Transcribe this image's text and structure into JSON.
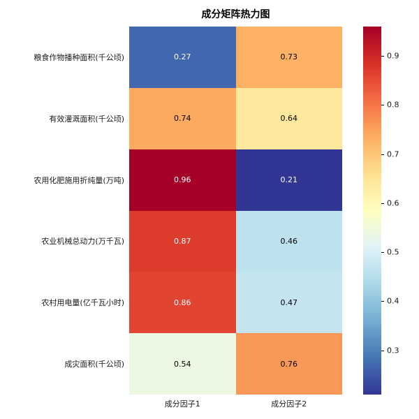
{
  "title": "成分矩阵热力图",
  "chart_data": {
    "type": "heatmap",
    "rows": [
      "粮食作物播种面积(千公顷)",
      "有效灌溉面积(千公顷)",
      "农用化肥施用折纯量(万吨)",
      "农业机械总动力(万千瓦)",
      "农村用电量(亿千瓦小时)",
      "成灾面积(千公顷)"
    ],
    "columns": [
      "成分因子1",
      "成分因子2"
    ],
    "values": [
      [
        0.27,
        0.73
      ],
      [
        0.74,
        0.64
      ],
      [
        0.96,
        0.21
      ],
      [
        0.87,
        0.46
      ],
      [
        0.86,
        0.47
      ],
      [
        0.54,
        0.76
      ]
    ],
    "vmin": 0.21,
    "vmax": 0.96,
    "colorbar_ticks": [
      0.3,
      0.4,
      0.5,
      0.6,
      0.7,
      0.8,
      0.9
    ],
    "colormap_name": "RdYlBu_r",
    "colormap_stops": [
      "#313695",
      "#4575b4",
      "#74add1",
      "#abd9e9",
      "#e0f3f8",
      "#ffffbf",
      "#fee090",
      "#fdae61",
      "#f46d43",
      "#d73027",
      "#a50026"
    ],
    "annotation_text_colors": {
      "light_cells": "#000000",
      "dark_cells": "#ffffff"
    },
    "legend_position": "right",
    "grid": false
  }
}
